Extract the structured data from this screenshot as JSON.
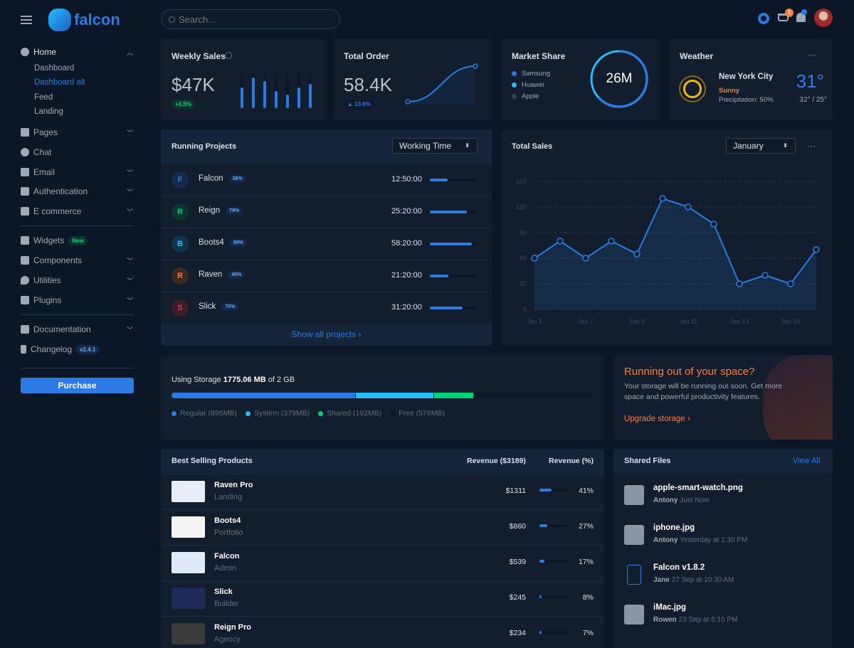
{
  "header": {
    "brand": "falcon",
    "search_placeholder": "Search...",
    "cart_count": "1"
  },
  "sidebar": {
    "home": "Home",
    "home_sub": [
      "Dashboard",
      "Dashboard alt",
      "Feed",
      "Landing"
    ],
    "items": [
      "Pages",
      "Chat",
      "Email",
      "Authentication",
      "E commerce"
    ],
    "items2": [
      "Widgets",
      "Components",
      "Utilities",
      "Plugins"
    ],
    "widgets_badge": "New",
    "items3": [
      "Documentation",
      "Changelog"
    ],
    "changelog_badge": "v2.4.1",
    "purchase": "Purchase"
  },
  "weekly_sales": {
    "title": "Weekly Sales",
    "value": "$47K",
    "change": "+3.5%",
    "bars": [
      0.6,
      0.9,
      0.8,
      0.5,
      0.4,
      0.6,
      0.7
    ]
  },
  "total_order": {
    "title": "Total Order",
    "value": "58.4K",
    "change": "13.6%"
  },
  "market_share": {
    "title": "Market Share",
    "total": "26M",
    "legend": [
      {
        "name": "Samsung",
        "color": "#2c7be5"
      },
      {
        "name": "Huawei",
        "color": "#27bcfd"
      },
      {
        "name": "Apple",
        "color": "#344050"
      }
    ]
  },
  "weather": {
    "title": "Weather",
    "city": "New York City",
    "condition": "Sunny",
    "precip": "Precipitation: 50%",
    "temp": "31°",
    "range": "32° / 25°"
  },
  "projects": {
    "title": "Running Projects",
    "select": "Working Time",
    "show_all": "Show all projects ›",
    "rows": [
      {
        "letter": "F",
        "name": "Falcon",
        "pct": "38%",
        "time": "12:50:00",
        "progress": 38,
        "color": "#2c7be5",
        "bg": "#132a4a"
      },
      {
        "letter": "R",
        "name": "Reign",
        "pct": "79%",
        "time": "25:20:00",
        "progress": 79,
        "color": "#00d27a",
        "bg": "#0f3330"
      },
      {
        "letter": "B",
        "name": "Boots4",
        "pct": "90%",
        "time": "58:20:00",
        "progress": 90,
        "color": "#27bcfd",
        "bg": "#123448"
      },
      {
        "letter": "R",
        "name": "Raven",
        "pct": "40%",
        "time": "21:20:00",
        "progress": 40,
        "color": "#f5803e",
        "bg": "#3a2a24"
      },
      {
        "letter": "S",
        "name": "Slick",
        "pct": "70%",
        "time": "31:20:00",
        "progress": 70,
        "color": "#e63757",
        "bg": "#3a1f2b"
      }
    ]
  },
  "chart_data": {
    "type": "line",
    "title": "Total Sales",
    "select": "January",
    "x": [
      "Jan 5",
      "Jan 6",
      "Jan 7",
      "Jan 8",
      "Jan 9",
      "Jan 10",
      "Jan 11",
      "Jan 12",
      "Jan 13",
      "Jan 14",
      "Jan 15",
      "Jan 16"
    ],
    "values": [
      60,
      80,
      60,
      80,
      65,
      130,
      120,
      100,
      30,
      40,
      30,
      70
    ],
    "xticks": [
      "Jan 5",
      "Jan 7",
      "Jan 9",
      "Jan 11",
      "Jan 13",
      "Jan 15"
    ],
    "yticks": [
      0,
      30,
      60,
      90,
      120,
      150
    ],
    "ylim": [
      0,
      150
    ],
    "grid": true,
    "color": "#2c7be5"
  },
  "storage": {
    "prefix": "Using Storage ",
    "used": "1775.06 MB",
    "suffix": " of 2 GB",
    "segments": [
      {
        "label": "Regular (895MB)",
        "mb": 895,
        "color": "#2c7be5"
      },
      {
        "label": "System (379MB)",
        "mb": 379,
        "color": "#27bcfd"
      },
      {
        "label": "Shared (192MB)",
        "mb": 192,
        "color": "#00d27a"
      },
      {
        "label": "Free (576MB)",
        "mb": 576,
        "color": "#0b1727"
      }
    ]
  },
  "upgrade": {
    "title": "Running out of your space?",
    "text": "Your storage will be running out soon. Get more space and powerful productivity features.",
    "link": "Upgrade storage ›"
  },
  "products": {
    "title": "Best Selling Products",
    "col1": "Revenue ($3189)",
    "col2": "Revenue (%)",
    "rows": [
      {
        "name": "Raven Pro",
        "cat": "Landing",
        "rev": "$1311",
        "pct": "41%",
        "p": 41
      },
      {
        "name": "Boots4",
        "cat": "Portfolio",
        "rev": "$860",
        "pct": "27%",
        "p": 27
      },
      {
        "name": "Falcon",
        "cat": "Admin",
        "rev": "$539",
        "pct": "17%",
        "p": 17
      },
      {
        "name": "Slick",
        "cat": "Builder",
        "rev": "$245",
        "pct": "8%",
        "p": 8
      },
      {
        "name": "Reign Pro",
        "cat": "Agency",
        "rev": "$234",
        "pct": "7%",
        "p": 7
      }
    ]
  },
  "files": {
    "title": "Shared Files",
    "view_all": "View All",
    "rows": [
      {
        "name": "apple-smart-watch.png",
        "user": "Antony",
        "time": "Just Now"
      },
      {
        "name": "iphone.jpg",
        "user": "Antony",
        "time": "Yesterday at 1:30 PM"
      },
      {
        "name": "Falcon v1.8.2",
        "user": "Jane",
        "time": "27 Sep at 10:30 AM"
      },
      {
        "name": "iMac.jpg",
        "user": "Rowen",
        "time": "23 Sep at 6:10 PM"
      }
    ]
  }
}
